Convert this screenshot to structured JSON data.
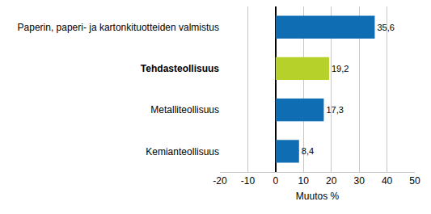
{
  "chart_data": {
    "type": "bar",
    "orientation": "horizontal",
    "categories": [
      "Paperin, paperi- ja kartonkituotteiden valmistus",
      "Tehdasteollisuus",
      "Metalliteollisuus",
      "Kemianteollisuus"
    ],
    "values": [
      35.6,
      19.2,
      17.3,
      8.4
    ],
    "value_labels": [
      "35,6",
      "19,2",
      "17,3",
      "8,4"
    ],
    "colors": [
      "#0f6db3",
      "#b6d12a",
      "#0f6db3",
      "#0f6db3"
    ],
    "x_label": "Muutos %",
    "xlim": [
      -20,
      50
    ],
    "xticks": [
      -20,
      -10,
      0,
      10,
      20,
      30,
      40,
      50
    ],
    "grid": true,
    "data_labels": true
  }
}
